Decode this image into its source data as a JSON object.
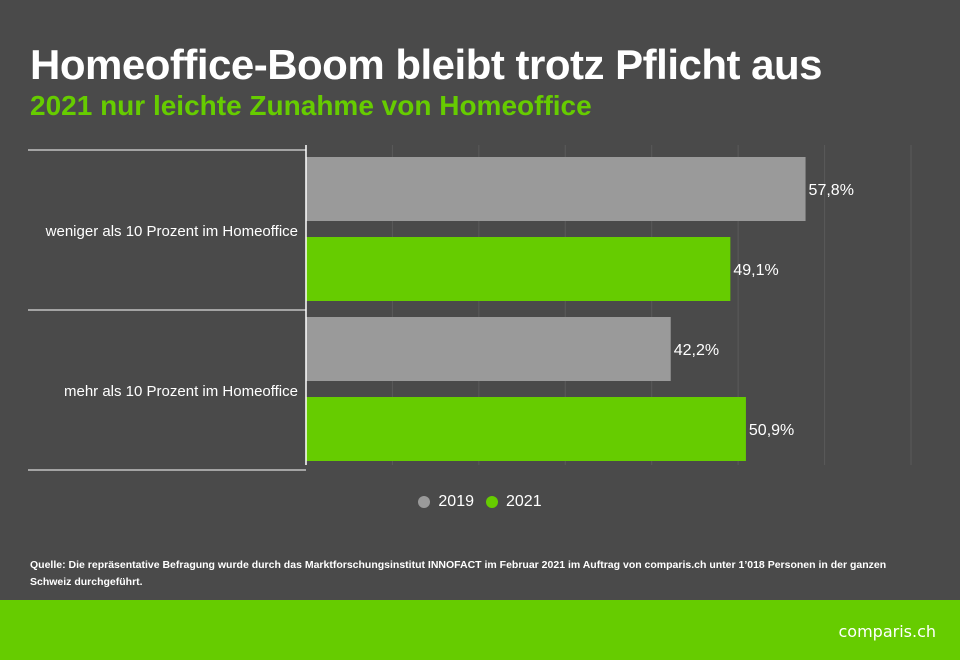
{
  "header": {
    "title": "Homeoffice-Boom bleibt trotz Pflicht aus",
    "subtitle": "2021 nur leichte Zunahme von Homeoffice"
  },
  "colors": {
    "background": "#4a4a4a",
    "series_2019": "#9a9a9a",
    "series_2021": "#66cc00",
    "accent": "#66cc00"
  },
  "chart_data": {
    "type": "bar",
    "orientation": "horizontal",
    "categories": [
      "weniger als 10 Prozent im Homeoffice",
      "mehr als 10 Prozent im Homeoffice"
    ],
    "series": [
      {
        "name": "2019",
        "values": [
          57.8,
          42.2
        ],
        "labels": [
          "57,8%",
          "42,2%"
        ],
        "color": "#9a9a9a"
      },
      {
        "name": "2021",
        "values": [
          49.1,
          50.9
        ],
        "labels": [
          "49,1%",
          "50,9%"
        ],
        "color": "#66cc00"
      }
    ],
    "xlim": [
      0,
      70
    ],
    "grid": true,
    "legend_position": "bottom"
  },
  "legend": {
    "items": [
      {
        "label": "2019",
        "color": "#9a9a9a"
      },
      {
        "label": "2021",
        "color": "#66cc00"
      }
    ]
  },
  "source": "Quelle: Die repräsentative Befragung wurde durch das Marktforschungsinstitut INNOFACT im Februar 2021 im Auftrag von comparis.ch unter 1’018 Personen in der ganzen Schweiz durchgeführt.",
  "footer": {
    "logo": "comparis.ch"
  }
}
